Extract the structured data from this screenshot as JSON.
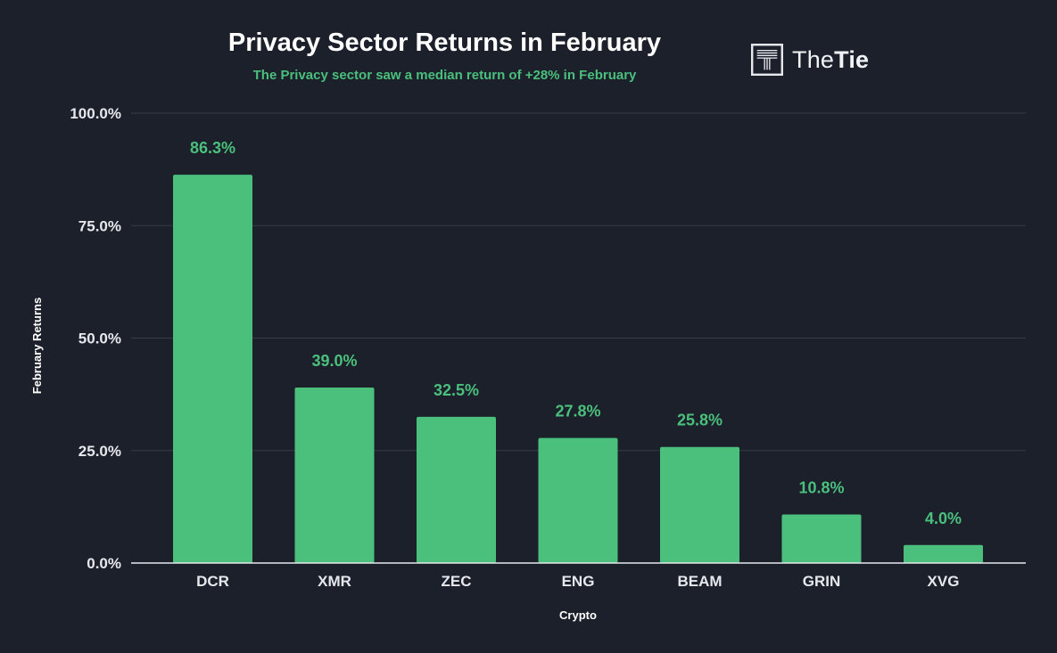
{
  "chart_data": {
    "type": "bar",
    "title": "Privacy Sector Returns in February",
    "subtitle": "The Privacy sector saw a median return of +28% in February",
    "xlabel": "Crypto",
    "ylabel": "February Returns",
    "categories": [
      "DCR",
      "XMR",
      "ZEC",
      "ENG",
      "BEAM",
      "GRIN",
      "XVG"
    ],
    "values": [
      86.3,
      39.0,
      32.5,
      27.8,
      25.8,
      10.8,
      4.0
    ],
    "value_labels": [
      "86.3%",
      "39.0%",
      "32.5%",
      "27.8%",
      "25.8%",
      "10.8%",
      "4.0%"
    ],
    "ylim": [
      0,
      100
    ],
    "yticks": [
      0,
      25,
      50,
      75,
      100
    ],
    "ytick_labels": [
      "0.0%",
      "25.0%",
      "50.0%",
      "75.0%",
      "100.0%"
    ],
    "grid": true,
    "bar_color": "#4bbf7c",
    "background": "#1b202b"
  },
  "logo": {
    "name": "TheTie",
    "text_regular": "The",
    "text_bold": "Tie",
    "icon": "t-logo-icon"
  }
}
